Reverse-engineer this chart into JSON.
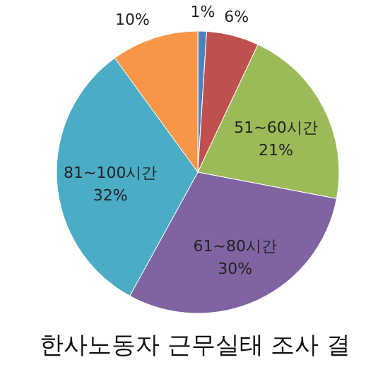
{
  "chart_data": {
    "type": "pie",
    "title": "한사노동자 근무실태 조사 결",
    "categories": [
      null,
      null,
      "51~60시간",
      "61~80시간",
      "81~100시간",
      null
    ],
    "values": [
      1,
      6,
      21,
      30,
      32,
      10
    ],
    "value_labels": [
      "1%",
      "6%",
      "21%",
      "30%",
      "32%",
      "10%"
    ],
    "colors": [
      "#4f81bd",
      "#c0504d",
      "#9bbb59",
      "#8064a2",
      "#4bacc6",
      "#f79646"
    ]
  }
}
